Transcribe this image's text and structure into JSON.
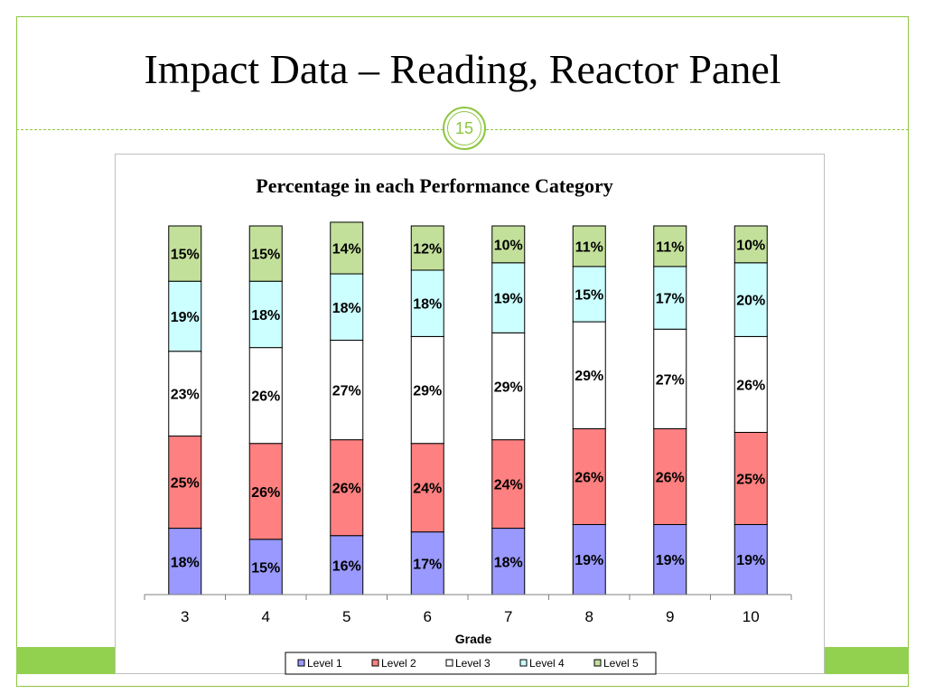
{
  "slide": {
    "title": "Impact Data – Reading, Reactor Panel",
    "slide_number": "15",
    "accent_color": "#8cc63f"
  },
  "chart_data": {
    "type": "bar",
    "stacked": true,
    "title": "Percentage in each Performance Category",
    "xlabel": "Grade",
    "ylabel": "",
    "ylim": [
      0,
      100
    ],
    "categories": [
      "3",
      "4",
      "5",
      "6",
      "7",
      "8",
      "9",
      "10"
    ],
    "series": [
      {
        "name": "Level 1",
        "color": "#9999ff",
        "values": [
          18,
          15,
          16,
          17,
          18,
          19,
          19,
          19
        ],
        "labels": [
          "18%",
          "15%",
          "16%",
          "17%",
          "18%",
          "19%",
          "19%",
          "19%"
        ]
      },
      {
        "name": "Level 2",
        "color": "#ff8080",
        "values": [
          25,
          26,
          26,
          24,
          24,
          26,
          26,
          25
        ],
        "labels": [
          "25%",
          "26%",
          "26%",
          "24%",
          "24%",
          "26%",
          "26%",
          "25%"
        ]
      },
      {
        "name": "Level 3",
        "color": "#ffffff",
        "values": [
          23,
          26,
          27,
          29,
          29,
          29,
          27,
          26
        ],
        "labels": [
          "23%",
          "26%",
          "27%",
          "29%",
          "29%",
          "29%",
          "27%",
          "26%"
        ]
      },
      {
        "name": "Level 4",
        "color": "#ccffff",
        "values": [
          19,
          18,
          18,
          18,
          19,
          15,
          17,
          20
        ],
        "labels": [
          "19%",
          "18%",
          "18%",
          "18%",
          "19%",
          "15%",
          "17%",
          "20%"
        ]
      },
      {
        "name": "Level 5",
        "color": "#c3e09b",
        "values": [
          15,
          15,
          14,
          12,
          10,
          11,
          11,
          10
        ],
        "labels": [
          "15%",
          "15%",
          "14%",
          "12%",
          "10%",
          "11%",
          "11%",
          "10%"
        ]
      }
    ],
    "grid": false,
    "legend_position": "bottom"
  }
}
